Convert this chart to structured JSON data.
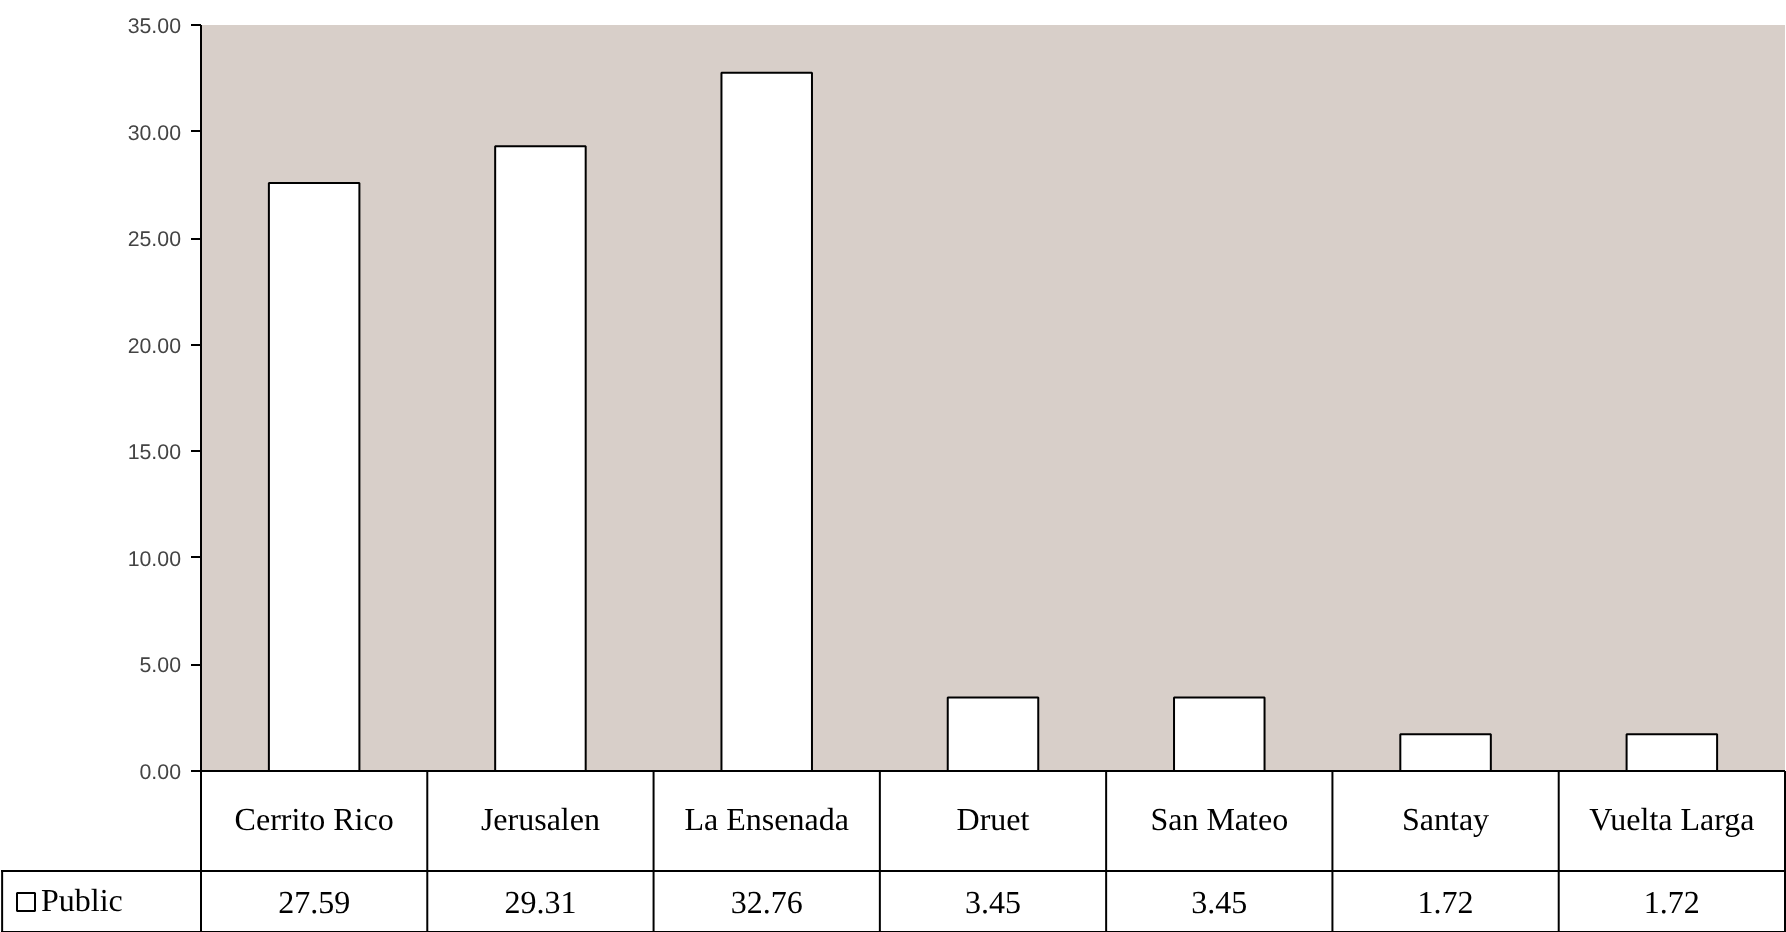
{
  "chart_data": {
    "type": "bar",
    "categories": [
      "Cerrito Rico",
      "Jerusalen",
      "La Ensenada",
      "Druet",
      "San Mateo",
      "Santay",
      "Vuelta Larga"
    ],
    "series": [
      {
        "name": "Public",
        "color": "#ffffff",
        "values": [
          27.59,
          29.31,
          32.76,
          3.45,
          3.45,
          1.72,
          1.72
        ]
      }
    ],
    "ylim": [
      0,
      35
    ],
    "yticks": [
      {
        "value": 0,
        "label": "0.00"
      },
      {
        "value": 5,
        "label": "5.00"
      },
      {
        "value": 10,
        "label": "10.00"
      },
      {
        "value": 15,
        "label": "15.00"
      },
      {
        "value": 20,
        "label": "20.00"
      },
      {
        "value": 25,
        "label": "25.00"
      },
      {
        "value": 30,
        "label": "30.00"
      },
      {
        "value": 35,
        "label": "35.00"
      }
    ],
    "grid": false,
    "data_labels": true,
    "legend": "bottom left"
  }
}
